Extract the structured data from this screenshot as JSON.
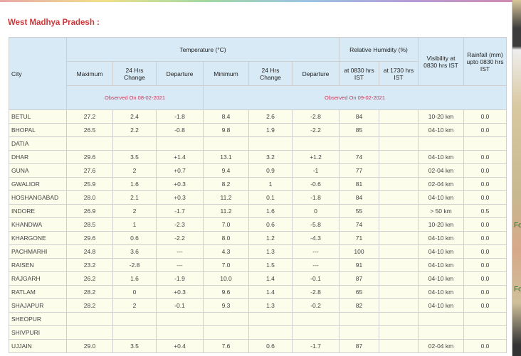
{
  "section_title": "West Madhya Pradesh :",
  "side_text": [
    "Fo",
    "Fo"
  ],
  "header": {
    "city": "City",
    "temperature": "Temperature (°C)",
    "humidity": "Relative Humidity (%)",
    "visibility": "Visibility at 0830 hrs IST",
    "rainfall": "Rainfall (mm) upto 0830 hrs IST",
    "maximum": "Maximum",
    "change1": "24 Hrs Change",
    "departure1": "Departure",
    "minimum": "Minimum",
    "change2": "24 Hrs Change",
    "departure2": "Departure",
    "rh0830": "at 0830 hrs IST",
    "rh1730": "at 1730 hrs IST",
    "observed_max": "Observed On 08-02-2021",
    "observed_min": "Observed On 09-02-2021"
  },
  "rows": [
    [
      "BETUL",
      "27.2",
      "2.4",
      "-1.8",
      "8.4",
      "2.6",
      "-2.8",
      "84",
      "",
      "10-20 km",
      "0.0"
    ],
    [
      "BHOPAL",
      "26.5",
      "2.2",
      "-0.8",
      "9.8",
      "1.9",
      "-2.2",
      "85",
      "",
      "04-10 km",
      "0.0"
    ],
    [
      "DATIA",
      "",
      "",
      "",
      "",
      "",
      "",
      "",
      "",
      "",
      ""
    ],
    [
      "DHAR",
      "29.6",
      "3.5",
      "+1.4",
      "13.1",
      "3.2",
      "+1.2",
      "74",
      "",
      "04-10 km",
      "0.0"
    ],
    [
      "GUNA",
      "27.6",
      "2",
      "+0.7",
      "9.4",
      "0.9",
      "-1",
      "77",
      "",
      "02-04 km",
      "0.0"
    ],
    [
      "GWALIOR",
      "25.9",
      "1.6",
      "+0.3",
      "8.2",
      "1",
      "-0.6",
      "81",
      "",
      "02-04 km",
      "0.0"
    ],
    [
      "HOSHANGABAD",
      "28.0",
      "2.1",
      "+0.3",
      "11.2",
      "0.1",
      "-1.8",
      "84",
      "",
      "04-10 km",
      "0.0"
    ],
    [
      "INDORE",
      "26.9",
      "2",
      "-1.7",
      "11.2",
      "1.6",
      "0",
      "55",
      "",
      "> 50 km",
      "0.5"
    ],
    [
      "KHANDWA",
      "28.5",
      "1",
      "-2.3",
      "7.0",
      "0.6",
      "-5.8",
      "74",
      "",
      "10-20 km",
      "0.0"
    ],
    [
      "KHARGONE",
      "29.6",
      "0.6",
      "-2.2",
      "8.0",
      "1.2",
      "-4.3",
      "71",
      "",
      "04-10 km",
      "0.0"
    ],
    [
      "PACHMARHI",
      "24.8",
      "3.6",
      "---",
      "4.3",
      "1.3",
      "---",
      "100",
      "",
      "04-10 km",
      "0.0"
    ],
    [
      "RAISEN",
      "23.2",
      "-2.8",
      "---",
      "7.0",
      "1.5",
      "---",
      "91",
      "",
      "04-10 km",
      "0.0"
    ],
    [
      "RAJGARH",
      "26.2",
      "1.6",
      "-1.9",
      "10.0",
      "1.4",
      "-0.1",
      "87",
      "",
      "04-10 km",
      "0.0"
    ],
    [
      "RATLAM",
      "28.2",
      "0",
      "+0.3",
      "9.6",
      "1.4",
      "-2.8",
      "65",
      "",
      "04-10 km",
      "0.0"
    ],
    [
      "SHAJAPUR",
      "28.2",
      "2",
      "-0.1",
      "9.3",
      "1.3",
      "-0.2",
      "82",
      "",
      "04-10 km",
      "0.0"
    ],
    [
      "SHEOPUR",
      "",
      "",
      "",
      "",
      "",
      "",
      "",
      "",
      "",
      ""
    ],
    [
      "SHIVPURI",
      "",
      "",
      "",
      "",
      "",
      "",
      "",
      "",
      "",
      ""
    ],
    [
      "UJJAIN",
      "29.0",
      "3.5",
      "+0.4",
      "7.6",
      "0.6",
      "-1.7",
      "87",
      "",
      "02-04 km",
      "0.0"
    ]
  ]
}
